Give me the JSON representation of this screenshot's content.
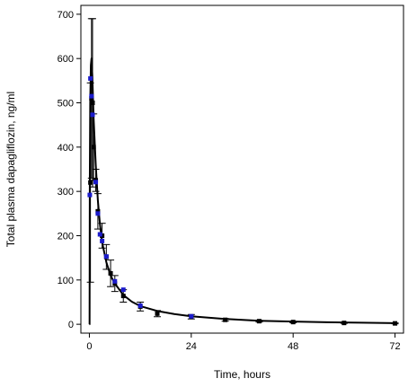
{
  "chart_data": {
    "type": "scatter",
    "title": "",
    "xlabel": "Time, hours",
    "ylabel": "Total plasma dapagliflozin, ng/ml",
    "xlim": [
      -2,
      74
    ],
    "ylim": [
      -20,
      720
    ],
    "xticks": [
      0,
      24,
      48,
      72
    ],
    "yticks": [
      0,
      100,
      200,
      300,
      400,
      500,
      600,
      700
    ],
    "xtick_labels": [
      "0",
      "24",
      "48",
      "72"
    ],
    "ytick_labels": [
      "0",
      "100",
      "200",
      "300",
      "400",
      "500",
      "600",
      "700"
    ],
    "grid": false,
    "legend": "none",
    "colors": {
      "observed_mean": "#000000",
      "observed_individual": "#1c1ccc",
      "fit": "#000000"
    },
    "series": [
      {
        "marker": "square",
        "color": "#000000",
        "points": [
          {
            "x": 0.25,
            "y": 320,
            "err": 225
          },
          {
            "x": 0.5,
            "y": 510,
            "err": 180
          },
          {
            "x": 0.75,
            "y": 500,
            "err": 190
          },
          {
            "x": 1.0,
            "y": 400,
            "err": 75
          },
          {
            "x": 1.5,
            "y": 325,
            "err": 25
          },
          {
            "x": 2.0,
            "y": 255,
            "err": 40
          },
          {
            "x": 3.0,
            "y": 200,
            "err": 28
          },
          {
            "x": 4.0,
            "y": 152,
            "err": 28
          },
          {
            "x": 5.0,
            "y": 115,
            "err": 30
          },
          {
            "x": 6.0,
            "y": 92,
            "err": 18
          },
          {
            "x": 8.0,
            "y": 64,
            "err": 14
          },
          {
            "x": 12.0,
            "y": 40,
            "err": 10
          },
          {
            "x": 16.0,
            "y": 24,
            "err": 7
          },
          {
            "x": 24.0,
            "y": 17,
            "err": 5
          },
          {
            "x": 32.0,
            "y": 10,
            "err": 3
          },
          {
            "x": 40.0,
            "y": 7,
            "err": 2
          },
          {
            "x": 48.0,
            "y": 5,
            "err": 1.5
          },
          {
            "x": 60.0,
            "y": 3,
            "err": 1
          },
          {
            "x": 72.0,
            "y": 2,
            "err": 1
          }
        ]
      },
      {
        "marker": "square",
        "color": "#1c1ccc",
        "points": [
          {
            "x": 0.1,
            "y": 292
          },
          {
            "x": 0.25,
            "y": 555
          },
          {
            "x": 0.5,
            "y": 515
          },
          {
            "x": 0.75,
            "y": 473
          },
          {
            "x": 1.5,
            "y": 321
          },
          {
            "x": 2.0,
            "y": 250
          },
          {
            "x": 2.5,
            "y": 203
          },
          {
            "x": 3.0,
            "y": 188
          },
          {
            "x": 4.0,
            "y": 153
          },
          {
            "x": 6.0,
            "y": 97
          },
          {
            "x": 8.0,
            "y": 78
          },
          {
            "x": 12.0,
            "y": 42
          },
          {
            "x": 24.0,
            "y": 18
          }
        ]
      }
    ],
    "fit_curve": [
      {
        "x": 0,
        "y": 0
      },
      {
        "x": 0.05,
        "y": 0
      },
      {
        "x": 0.1,
        "y": 320
      },
      {
        "x": 0.2,
        "y": 500
      },
      {
        "x": 0.35,
        "y": 585
      },
      {
        "x": 0.5,
        "y": 600
      },
      {
        "x": 0.7,
        "y": 560
      },
      {
        "x": 1.0,
        "y": 465
      },
      {
        "x": 1.5,
        "y": 360
      },
      {
        "x": 2.0,
        "y": 280
      },
      {
        "x": 2.5,
        "y": 225
      },
      {
        "x": 3.0,
        "y": 185
      },
      {
        "x": 4.0,
        "y": 140
      },
      {
        "x": 5.0,
        "y": 110
      },
      {
        "x": 6.0,
        "y": 92
      },
      {
        "x": 8.0,
        "y": 66
      },
      {
        "x": 10.0,
        "y": 51
      },
      {
        "x": 12.0,
        "y": 41
      },
      {
        "x": 16.0,
        "y": 30
      },
      {
        "x": 20.0,
        "y": 23
      },
      {
        "x": 24.0,
        "y": 18
      },
      {
        "x": 32.0,
        "y": 12
      },
      {
        "x": 40.0,
        "y": 8
      },
      {
        "x": 48.0,
        "y": 6
      },
      {
        "x": 56.0,
        "y": 4.5
      },
      {
        "x": 64.0,
        "y": 3.5
      },
      {
        "x": 72.0,
        "y": 2.5
      }
    ]
  }
}
